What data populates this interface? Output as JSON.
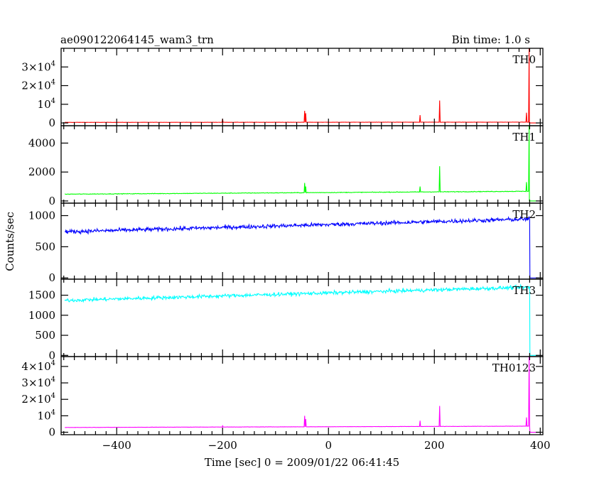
{
  "header": {
    "left_title": "ae090122064145_wam3_trn",
    "right_title": "Bin time: 1.0 s"
  },
  "chart_data": {
    "type": "line",
    "xlabel": "Time [sec] 0 = 2009/01/22 06:41:45",
    "ylabel": "Counts/sec",
    "xlim": [
      -505,
      405
    ],
    "x_ticks": [
      -400,
      -200,
      0,
      200,
      400
    ],
    "x_tick_labels": [
      "−400",
      "−200",
      "0",
      "200",
      "400"
    ],
    "panels": [
      {
        "name": "TH0",
        "color": "#ff0000",
        "ylim": [
          -1500,
          40000
        ],
        "y_ticks": [
          0,
          10000,
          20000,
          30000
        ],
        "y_tick_labels": [
          {
            "base": "0",
            "exp": ""
          },
          {
            "base": "10",
            "exp": "4"
          },
          {
            "base": "2×10",
            "exp": "4"
          },
          {
            "base": "3×10",
            "exp": "4"
          }
        ],
        "baseline_start": 300,
        "baseline_end": 420,
        "noise": 60,
        "end_time": 379,
        "end_value": 0,
        "spikes": [
          [
            -200,
            2200
          ],
          [
            -45,
            6500
          ],
          [
            -43,
            5200
          ],
          [
            173,
            4200
          ],
          [
            210,
            12000
          ],
          [
            374,
            5500
          ],
          [
            379,
            40000
          ],
          [
            381,
            11000
          ]
        ]
      },
      {
        "name": "TH1",
        "color": "#00ff00",
        "ylim": [
          -150,
          5200
        ],
        "y_ticks": [
          0,
          2000,
          4000
        ],
        "y_tick_labels": [
          {
            "base": "0",
            "exp": ""
          },
          {
            "base": "2000",
            "exp": ""
          },
          {
            "base": "4000",
            "exp": ""
          }
        ],
        "baseline_start": 470,
        "baseline_end": 670,
        "noise": 22,
        "end_time": 379,
        "end_value": 0,
        "spikes": [
          [
            -45,
            1250
          ],
          [
            -43,
            1000
          ],
          [
            173,
            1000
          ],
          [
            210,
            2400
          ],
          [
            374,
            1300
          ],
          [
            379,
            5200
          ],
          [
            381,
            1800
          ]
        ]
      },
      {
        "name": "TH2",
        "color": "#0000ff",
        "ylim": [
          -20,
          1200
        ],
        "y_ticks": [
          0,
          500,
          1000
        ],
        "y_tick_labels": [
          {
            "base": "0",
            "exp": ""
          },
          {
            "base": "500",
            "exp": ""
          },
          {
            "base": "1000",
            "exp": ""
          }
        ],
        "baseline_start": 740,
        "baseline_end": 945,
        "noise": 32,
        "end_time": 380,
        "end_value": 0,
        "spikes": []
      },
      {
        "name": "TH3",
        "color": "#00ffff",
        "ylim": [
          -30,
          1900
        ],
        "y_ticks": [
          0,
          500,
          1000,
          1500
        ],
        "y_tick_labels": [
          {
            "base": "0",
            "exp": ""
          },
          {
            "base": "500",
            "exp": ""
          },
          {
            "base": "1000",
            "exp": ""
          },
          {
            "base": "1500",
            "exp": ""
          }
        ],
        "baseline_start": 1370,
        "baseline_end": 1700,
        "noise": 45,
        "end_time": 380,
        "end_value": 0,
        "spikes": []
      },
      {
        "name": "TH0123",
        "color": "#ff00ff",
        "ylim": [
          -1500,
          46000
        ],
        "y_ticks": [
          0,
          10000,
          20000,
          30000,
          40000
        ],
        "y_tick_labels": [
          {
            "base": "0",
            "exp": ""
          },
          {
            "base": "10",
            "exp": "4"
          },
          {
            "base": "2×10",
            "exp": "4"
          },
          {
            "base": "3×10",
            "exp": "4"
          },
          {
            "base": "4×10",
            "exp": "4"
          }
        ],
        "baseline_start": 2900,
        "baseline_end": 3700,
        "noise": 80,
        "end_time": 380,
        "end_value": 0,
        "spikes": [
          [
            -200,
            3900
          ],
          [
            -45,
            10000
          ],
          [
            -43,
            8000
          ],
          [
            173,
            7000
          ],
          [
            210,
            16000
          ],
          [
            374,
            9000
          ],
          [
            379,
            46000
          ],
          [
            381,
            13000
          ]
        ]
      }
    ]
  }
}
